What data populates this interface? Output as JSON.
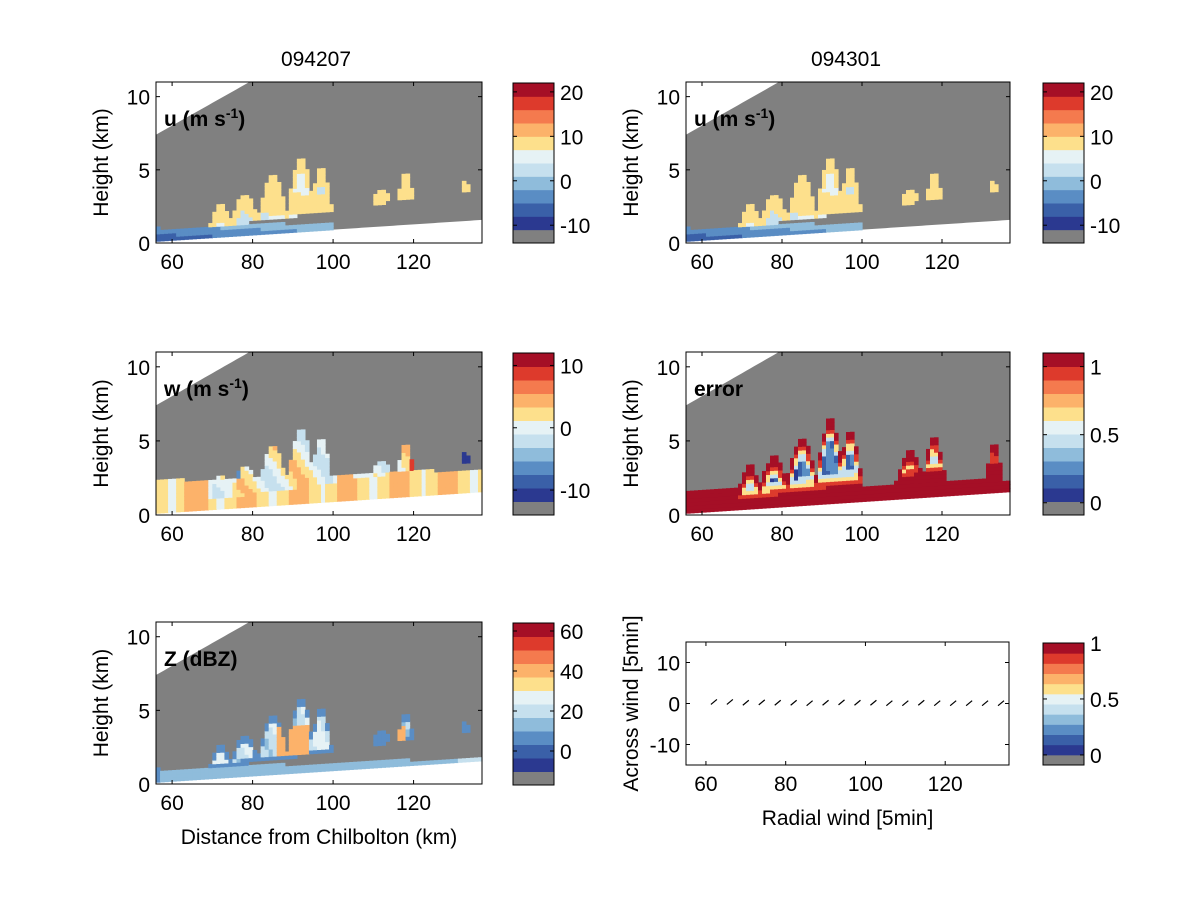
{
  "figure": {
    "col_titles": [
      "094207",
      "094301"
    ]
  },
  "palette": [
    "#808080",
    "#2b3990",
    "#3a60a8",
    "#5a8dc4",
    "#8fbcdb",
    "#c6e0ee",
    "#e6f2f5",
    "#fde08c",
    "#fcb26a",
    "#f47a4e",
    "#dd3a2c",
    "#a50f26"
  ],
  "colors": {
    "mask": "#808080",
    "ground": "#ffffff",
    "axis": "#000000"
  },
  "chart_data": [
    {
      "id": "u_094207",
      "type": "heatmap",
      "panel_label": "u (m s",
      "panel_label_sup": "-1",
      "ylabel": "Height (km)",
      "xlabel": "",
      "xlim": [
        56,
        137
      ],
      "ylim": [
        0,
        11
      ],
      "xticks": [
        "60",
        "80",
        "100",
        "120"
      ],
      "yticks": [
        "0",
        "5",
        "10"
      ],
      "colorbar": {
        "ticks": [
          "20",
          "10",
          "0",
          "-10"
        ]
      }
    },
    {
      "id": "u_094301",
      "type": "heatmap",
      "panel_label": "u (m s",
      "panel_label_sup": "-1",
      "ylabel": "Height (km)",
      "xlabel": "",
      "xlim": [
        56,
        137
      ],
      "ylim": [
        0,
        11
      ],
      "xticks": [
        "60",
        "80",
        "100",
        "120"
      ],
      "yticks": [
        "0",
        "5",
        "10"
      ],
      "colorbar": {
        "ticks": [
          "20",
          "10",
          "0",
          "-10"
        ]
      }
    },
    {
      "id": "w_094207",
      "type": "heatmap",
      "panel_label": "w (m s",
      "panel_label_sup": "-1",
      "ylabel": "Height (km)",
      "xlabel": "",
      "xlim": [
        56,
        137
      ],
      "ylim": [
        0,
        11
      ],
      "xticks": [
        "60",
        "80",
        "100",
        "120"
      ],
      "yticks": [
        "0",
        "5",
        "10"
      ],
      "colorbar": {
        "ticks": [
          "10",
          "0",
          "-10"
        ]
      }
    },
    {
      "id": "error_094301",
      "type": "heatmap",
      "panel_label": "error",
      "panel_label_sup": "",
      "ylabel": "Height (km)",
      "xlabel": "",
      "xlim": [
        56,
        137
      ],
      "ylim": [
        0,
        11
      ],
      "xticks": [
        "60",
        "80",
        "100",
        "120"
      ],
      "yticks": [
        "0",
        "5",
        "10"
      ],
      "colorbar": {
        "ticks": [
          "1",
          "0.5",
          "0"
        ]
      }
    },
    {
      "id": "Z_094207",
      "type": "heatmap",
      "panel_label": "Z (dBZ)",
      "panel_label_sup": "",
      "ylabel": "Height (km)",
      "xlabel": "Distance from Chilbolton (km)",
      "xlim": [
        56,
        137
      ],
      "ylim": [
        0,
        11
      ],
      "xticks": [
        "60",
        "80",
        "100",
        "120"
      ],
      "yticks": [
        "0",
        "5",
        "10"
      ],
      "colorbar": {
        "ticks": [
          "60",
          "40",
          "20",
          "0"
        ]
      }
    },
    {
      "id": "wind_094301",
      "type": "scatter",
      "panel_label": "",
      "panel_label_sup": "",
      "ylabel": "Across wind [5min]",
      "xlabel": "Radial wind [5min]",
      "xlim": [
        55,
        136
      ],
      "ylim": [
        -15,
        15
      ],
      "xticks": [
        "60",
        "80",
        "100",
        "120"
      ],
      "yticks": [
        "-10",
        "0",
        "10"
      ],
      "colorbar": {
        "ticks": [
          "1",
          "0.5",
          "0"
        ]
      },
      "points": [
        {
          "x": 62,
          "y": 0.5
        },
        {
          "x": 66,
          "y": 0.5
        },
        {
          "x": 70,
          "y": 0.3
        },
        {
          "x": 74,
          "y": 0.4
        },
        {
          "x": 78,
          "y": 0.3
        },
        {
          "x": 82,
          "y": 0.3
        },
        {
          "x": 86,
          "y": 0.2
        },
        {
          "x": 90,
          "y": 0.3
        },
        {
          "x": 94,
          "y": 0.4
        },
        {
          "x": 98,
          "y": 0.3
        },
        {
          "x": 102,
          "y": 0.3
        },
        {
          "x": 106,
          "y": 0.2
        },
        {
          "x": 110,
          "y": 0.2
        },
        {
          "x": 114,
          "y": 0.3
        },
        {
          "x": 118,
          "y": 0.2
        },
        {
          "x": 122,
          "y": 0.2
        },
        {
          "x": 126,
          "y": 0.2
        },
        {
          "x": 130,
          "y": 0.2
        },
        {
          "x": 134,
          "y": 0.2
        }
      ]
    }
  ]
}
